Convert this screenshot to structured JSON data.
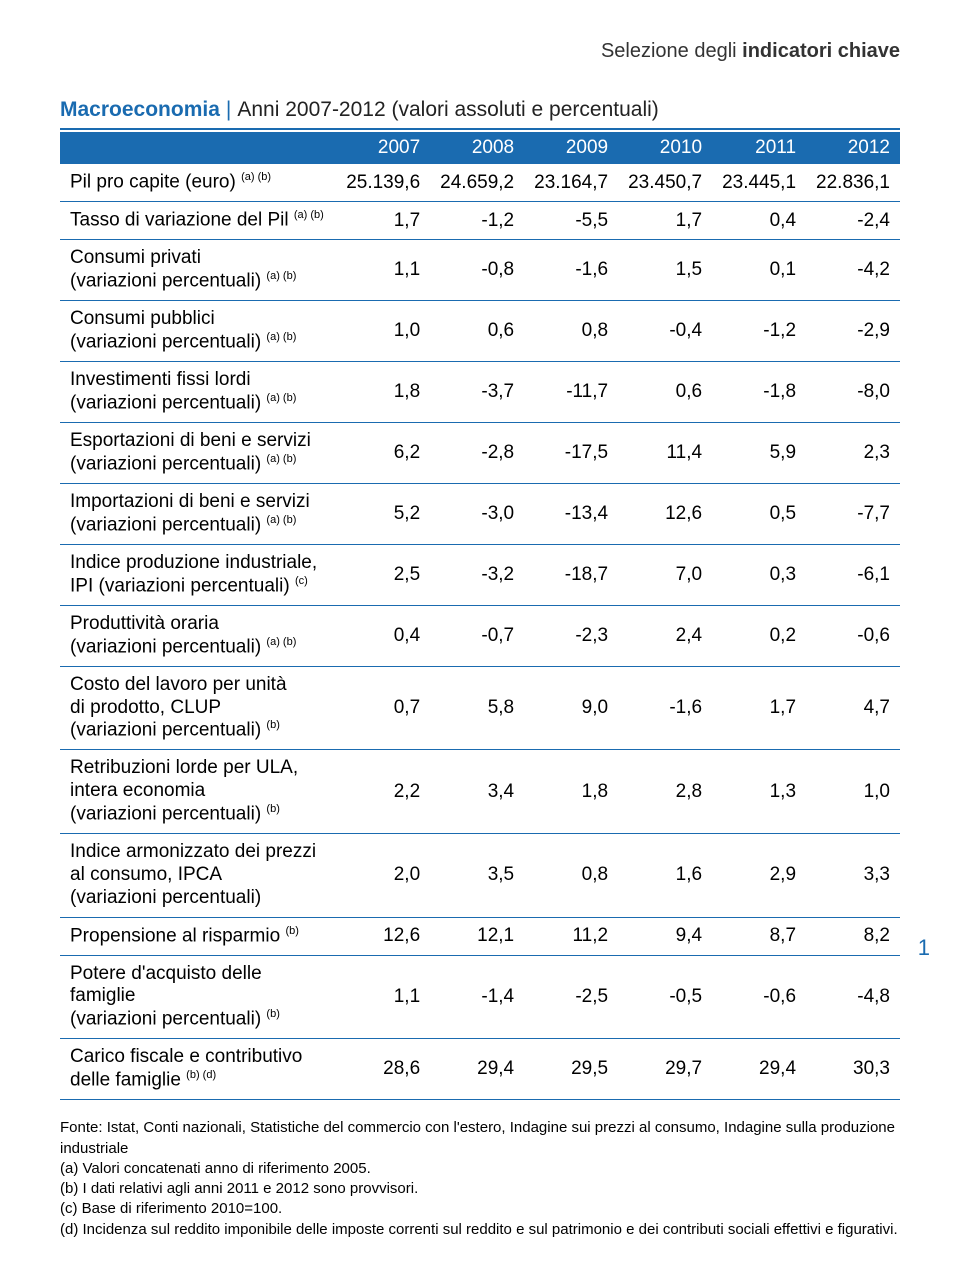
{
  "header": {
    "pre": "Selezione degli ",
    "bold": "indicatori chiave"
  },
  "title": {
    "main": "Macroeconomia",
    "subtitle": "Anni 2007-2012 (valori assoluti e percentuali)"
  },
  "columns": [
    "",
    "2007",
    "2008",
    "2009",
    "2010",
    "2011",
    "2012"
  ],
  "rows": [
    {
      "label": "Pil pro capite (euro) ",
      "sup": "(a) (b)",
      "vals": [
        "25.139,6",
        "24.659,2",
        "23.164,7",
        "23.450,7",
        "23.445,1",
        "22.836,1"
      ]
    },
    {
      "label": "Tasso di variazione del Pil ",
      "sup": "(a) (b)",
      "vals": [
        "1,7",
        "-1,2",
        "-5,5",
        "1,7",
        "0,4",
        "-2,4"
      ]
    },
    {
      "label": "Consumi privati",
      "label2": "(variazioni percentuali) ",
      "sup": "(a) (b)",
      "vals": [
        "1,1",
        "-0,8",
        "-1,6",
        "1,5",
        "0,1",
        "-4,2"
      ]
    },
    {
      "label": "Consumi pubblici",
      "label2": "(variazioni percentuali) ",
      "sup": "(a) (b)",
      "vals": [
        "1,0",
        "0,6",
        "0,8",
        "-0,4",
        "-1,2",
        "-2,9"
      ]
    },
    {
      "label": "Investimenti fissi lordi",
      "label2": "(variazioni percentuali) ",
      "sup": "(a) (b)",
      "vals": [
        "1,8",
        "-3,7",
        "-11,7",
        "0,6",
        "-1,8",
        "-8,0"
      ]
    },
    {
      "label": "Esportazioni di beni e servizi",
      "label2": "(variazioni percentuali) ",
      "sup": "(a) (b)",
      "vals": [
        "6,2",
        "-2,8",
        "-17,5",
        "11,4",
        "5,9",
        "2,3"
      ]
    },
    {
      "label": "Importazioni di beni e servizi",
      "label2": "(variazioni percentuali) ",
      "sup": "(a) (b)",
      "vals": [
        "5,2",
        "-3,0",
        "-13,4",
        "12,6",
        "0,5",
        "-7,7"
      ]
    },
    {
      "label": "Indice produzione industriale,",
      "label2": "IPI (variazioni percentuali) ",
      "sup": "(c)",
      "vals": [
        "2,5",
        "-3,2",
        "-18,7",
        "7,0",
        "0,3",
        "-6,1"
      ]
    },
    {
      "label": "Produttività oraria",
      "label2": "(variazioni percentuali) ",
      "sup": "(a) (b)",
      "vals": [
        "0,4",
        "-0,7",
        "-2,3",
        "2,4",
        "0,2",
        "-0,6"
      ]
    },
    {
      "label": "Costo del lavoro per unità",
      "label2": "di prodotto, CLUP",
      "label3": "(variazioni percentuali) ",
      "sup": "(b)",
      "vals": [
        "0,7",
        "5,8",
        "9,0",
        "-1,6",
        "1,7",
        "4,7"
      ]
    },
    {
      "label": "Retribuzioni lorde per ULA,",
      "label2": "intera economia",
      "label3": "(variazioni percentuali) ",
      "sup": "(b)",
      "vals": [
        "2,2",
        "3,4",
        "1,8",
        "2,8",
        "1,3",
        "1,0"
      ]
    },
    {
      "label": "Indice armonizzato dei prezzi",
      "label2": "al consumo, IPCA",
      "label3": "(variazioni percentuali)",
      "sup": "",
      "vals": [
        "2,0",
        "3,5",
        "0,8",
        "1,6",
        "2,9",
        "3,3"
      ]
    },
    {
      "label": "Propensione al risparmio ",
      "sup": "(b)",
      "vals": [
        "12,6",
        "12,1",
        "11,2",
        "9,4",
        "8,7",
        "8,2"
      ]
    },
    {
      "label": "Potere d'acquisto delle famiglie",
      "label2": "(variazioni percentuali) ",
      "sup": "(b)",
      "vals": [
        "1,1",
        "-1,4",
        "-2,5",
        "-0,5",
        "-0,6",
        "-4,8"
      ]
    },
    {
      "label": "Carico fiscale e contributivo",
      "label2": "delle famiglie ",
      "sup": "(b) (d)",
      "vals": [
        "28,6",
        "29,4",
        "29,5",
        "29,7",
        "29,4",
        "30,3"
      ]
    }
  ],
  "footnotes": [
    "Fonte: Istat, Conti nazionali, Statistiche del commercio con l'estero, Indagine sui prezzi al consumo, Indagine sulla produzione industriale",
    "(a) Valori concatenati anno di riferimento 2005.",
    "(b) I dati relativi agli anni 2011 e 2012 sono provvisori.",
    "(c) Base di riferimento 2010=100.",
    "(d) Incidenza sul reddito imponibile delle imposte correnti sul reddito e sul patrimonio e dei contributi sociali effettivi e figurativi."
  ],
  "page_number": "1",
  "colors": {
    "accent": "#1a6bb0",
    "text": "#000000",
    "bg": "#ffffff"
  }
}
